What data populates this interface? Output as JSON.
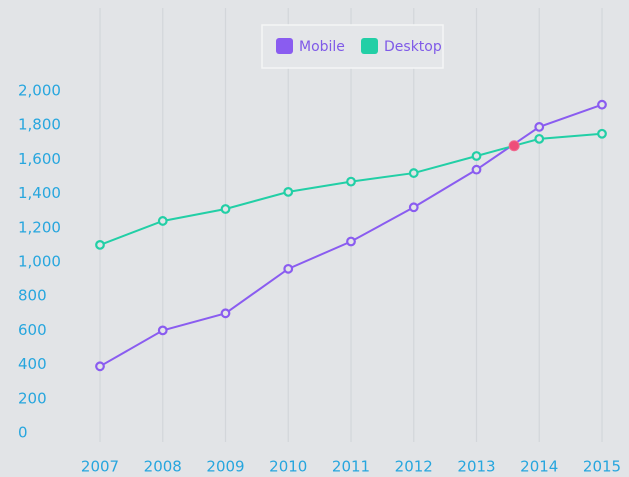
{
  "chart_data": {
    "type": "line",
    "x": [
      2007,
      2008,
      2009,
      2010,
      2011,
      2012,
      2013,
      2014,
      2015
    ],
    "series": [
      {
        "name": "Mobile",
        "color": "#8a5cf0",
        "values": [
          390,
          600,
          700,
          960,
          1120,
          1320,
          1540,
          1790,
          1920
        ]
      },
      {
        "name": "Desktop",
        "color": "#22cfa6",
        "values": [
          1100,
          1240,
          1310,
          1410,
          1470,
          1520,
          1620,
          1720,
          1750
        ]
      }
    ],
    "highlight_point": {
      "x": 2013.6,
      "y": 1680,
      "color": "#ee4d7a"
    },
    "xlim": [
      2007,
      2015
    ],
    "xticks": [
      2007,
      2008,
      2009,
      2010,
      2011,
      2012,
      2013,
      2014,
      2015
    ],
    "ylim": [
      0,
      2000
    ],
    "yticks": [
      0,
      200,
      400,
      600,
      800,
      {
        "value": 1000,
        "label": "1,000"
      },
      {
        "value": 1200,
        "label": "1,200"
      },
      {
        "value": 1400,
        "label": "1,400"
      },
      {
        "value": 1600,
        "label": "1,600"
      },
      {
        "value": 1800,
        "label": "1,800"
      },
      {
        "value": 2000,
        "label": "2,000"
      }
    ],
    "xgrid": true,
    "legend": "top"
  }
}
